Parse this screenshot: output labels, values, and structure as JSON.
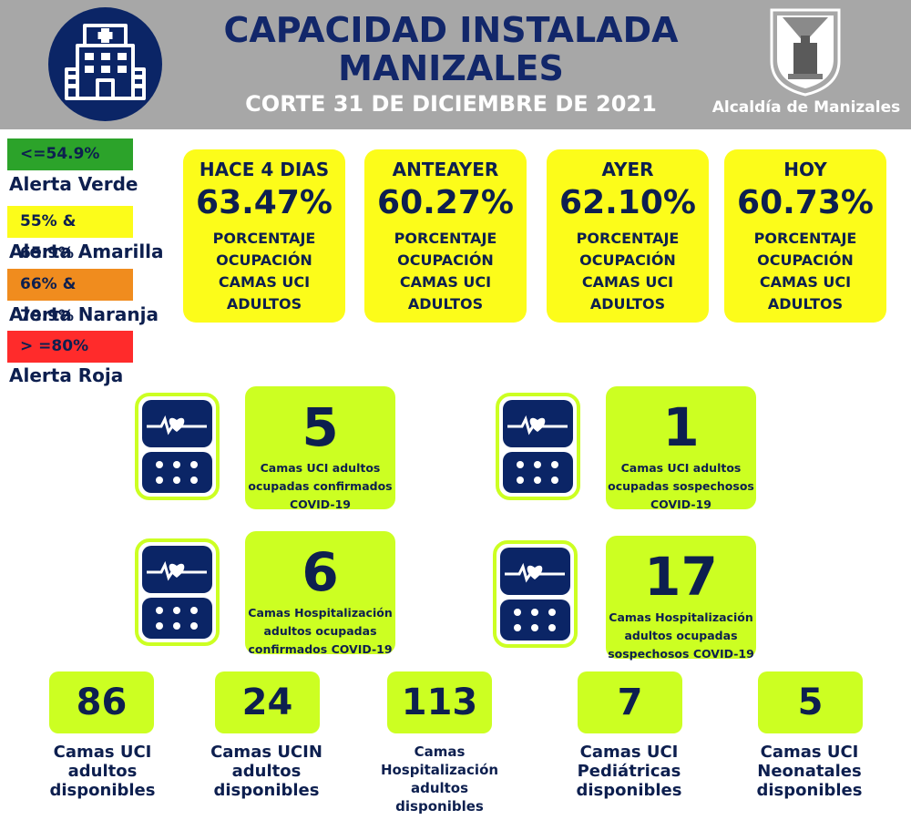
{
  "header": {
    "title_line1": "CAPACIDAD INSTALADA",
    "title_line2": "MANIZALES",
    "subtitle": "CORTE 31 DE DICIEMBRE  DE 2021",
    "org": "Alcaldía de Manizales"
  },
  "legend": [
    {
      "range": "<=54.9%",
      "label": "Alerta Verde",
      "color": "#2ca32a"
    },
    {
      "range": "55% & 65.9%",
      "label": "Alerta Amarilla",
      "color": "#fcfc1a"
    },
    {
      "range": "66% & 79.9%",
      "label": "Alerta Naranja",
      "color": "#f08c1e"
    },
    {
      "range": "> =80%",
      "label": "Alerta Roja",
      "color": "#ff2b2b"
    }
  ],
  "occupancy": [
    {
      "when": "HACE 4 DIAS",
      "pct": "63.47%",
      "desc": [
        "PORCENTAJE",
        "OCUPACIÓN",
        "CAMAS UCI",
        "ADULTOS"
      ]
    },
    {
      "when": "ANTEAYER",
      "pct": "60.27%",
      "desc": [
        "PORCENTAJE",
        "OCUPACIÓN",
        "CAMAS UCI",
        "ADULTOS"
      ]
    },
    {
      "when": "AYER",
      "pct": "62.10%",
      "desc": [
        "PORCENTAJE",
        "OCUPACIÓN",
        "CAMAS UCI",
        "ADULTOS"
      ]
    },
    {
      "when": "HOY",
      "pct": "60.73%",
      "desc": [
        "PORCENTAJE",
        "OCUPACIÓN",
        "CAMAS UCI",
        "ADULTOS"
      ]
    }
  ],
  "stats": [
    {
      "value": "5",
      "label": [
        "Camas UCI adultos",
        "ocupadas confirmados",
        "COVID-19"
      ]
    },
    {
      "value": "1",
      "label": [
        "Camas UCI adultos",
        "ocupadas sospechosos",
        "COVID-19"
      ]
    },
    {
      "value": "6",
      "label": [
        "Camas  Hospitalización",
        "adultos ocupadas",
        "confirmados COVID-19"
      ]
    },
    {
      "value": "17",
      "label": [
        "Camas  Hospitalización",
        "adultos ocupadas",
        "sospechosos COVID-19"
      ]
    }
  ],
  "available": [
    {
      "value": "86",
      "label": [
        "Camas UCI",
        "adultos",
        "disponibles"
      ]
    },
    {
      "value": "24",
      "label": [
        "Camas UCIN",
        "adultos",
        "disponibles"
      ]
    },
    {
      "value": "113",
      "label": [
        "Camas",
        "Hospitalización",
        "adultos",
        "disponibles"
      ]
    },
    {
      "value": "7",
      "label": [
        "Camas  UCI",
        "Pediátricas",
        "disponibles"
      ]
    },
    {
      "value": "5",
      "label": [
        "Camas  UCI",
        "Neonatales",
        "disponibles"
      ]
    }
  ],
  "colors": {
    "navy": "#0b2566",
    "yellow": "#fcfc1a",
    "lime": "#ccff22",
    "header_gray": "#a7a7a7"
  }
}
